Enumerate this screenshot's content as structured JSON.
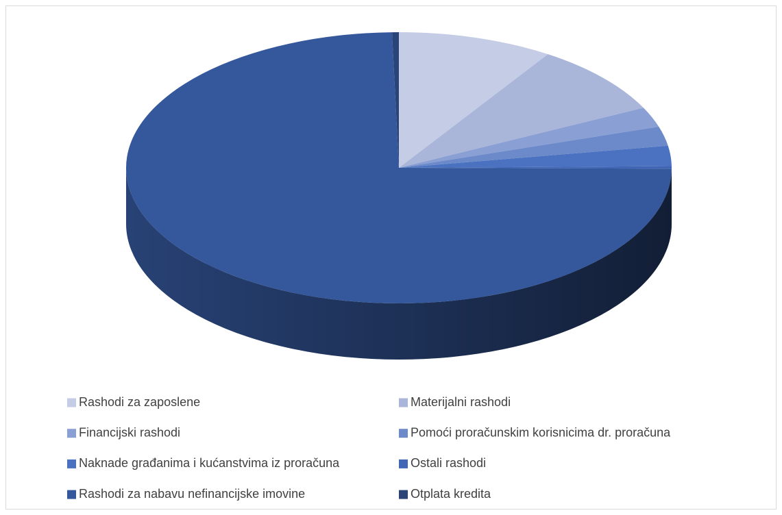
{
  "chart_data": {
    "type": "pie",
    "style": "3d",
    "labels": [
      "Rashodi za zaposlene",
      "Materijalni rashodi",
      "Financijski rashodi",
      "Pomoći proračunskim korisnicima dr. proračuna",
      "Naknade građanima i kućanstvima iz proračuna",
      "Ostali rashodi",
      "Rashodi za nabavu nefinancijske imovine",
      "Otplata kredita"
    ],
    "values": [
      9.2,
      8.5,
      2.4,
      2.3,
      2.4,
      0.3,
      74.5,
      0.4
    ],
    "colors": [
      "#c5cce5",
      "#a9b6da",
      "#8a9fd3",
      "#6c8ac9",
      "#4a72c0",
      "#4066b5",
      "#35589c",
      "#2a4478"
    ],
    "legend": "bottom"
  }
}
